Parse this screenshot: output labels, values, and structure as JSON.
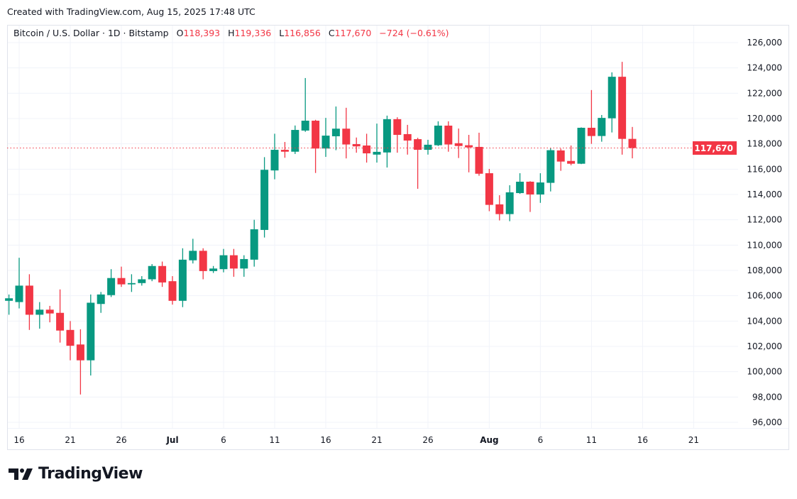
{
  "header": {
    "created": "Created with TradingView.com, Aug 15, 2025 17:48 UTC"
  },
  "legend": {
    "symbol": "Bitcoin / U.S. Dollar · 1D · Bitstamp",
    "o_label": "O",
    "o": "118,393",
    "h_label": "H",
    "h": "119,336",
    "l_label": "L",
    "l": "116,856",
    "c_label": "C",
    "c": "117,670",
    "change": "−724 (−0.61%)"
  },
  "last_price_label": "117,670",
  "brand": {
    "name": "TradingView"
  },
  "colors": {
    "up": "#089981",
    "down": "#F23645",
    "grid": "#F0F3FA"
  },
  "chart_data": {
    "type": "candlestick",
    "title": "Bitcoin / U.S. Dollar · 1D · Bitstamp",
    "ylim": [
      95500,
      126500
    ],
    "yticks": [
      96000,
      98000,
      100000,
      102000,
      104000,
      106000,
      108000,
      110000,
      112000,
      114000,
      116000,
      118000,
      120000,
      122000,
      124000,
      126000
    ],
    "ytick_labels": [
      "96,000",
      "98,000",
      "100,000",
      "102,000",
      "104,000",
      "106,000",
      "108,000",
      "110,000",
      "112,000",
      "114,000",
      "116,000",
      "118,000",
      "120,000",
      "122,000",
      "124,000",
      "126,000"
    ],
    "xticks": [
      {
        "date": "2025-06-16",
        "label": "16"
      },
      {
        "date": "2025-06-21",
        "label": "21"
      },
      {
        "date": "2025-06-26",
        "label": "26"
      },
      {
        "date": "2025-07-01",
        "label": "Jul"
      },
      {
        "date": "2025-07-06",
        "label": "6"
      },
      {
        "date": "2025-07-11",
        "label": "11"
      },
      {
        "date": "2025-07-16",
        "label": "16"
      },
      {
        "date": "2025-07-21",
        "label": "21"
      },
      {
        "date": "2025-07-26",
        "label": "26"
      },
      {
        "date": "2025-08-01",
        "label": "Aug"
      },
      {
        "date": "2025-08-06",
        "label": "6"
      },
      {
        "date": "2025-08-11",
        "label": "11"
      },
      {
        "date": "2025-08-16",
        "label": "16"
      },
      {
        "date": "2025-08-21",
        "label": "21"
      }
    ],
    "grid": true,
    "last_price": 117670,
    "candles": [
      {
        "date": "2025-06-15",
        "o": 105600,
        "h": 106100,
        "l": 104500,
        "c": 105800
      },
      {
        "date": "2025-06-16",
        "o": 105500,
        "h": 109000,
        "l": 105000,
        "c": 106800
      },
      {
        "date": "2025-06-17",
        "o": 106800,
        "h": 107700,
        "l": 103300,
        "c": 104500
      },
      {
        "date": "2025-06-18",
        "o": 104500,
        "h": 105500,
        "l": 103400,
        "c": 104900
      },
      {
        "date": "2025-06-19",
        "o": 104900,
        "h": 105200,
        "l": 103900,
        "c": 104600
      },
      {
        "date": "2025-06-20",
        "o": 104650,
        "h": 106500,
        "l": 102300,
        "c": 103250
      },
      {
        "date": "2025-06-21",
        "o": 103300,
        "h": 104000,
        "l": 100900,
        "c": 102050
      },
      {
        "date": "2025-06-22",
        "o": 102150,
        "h": 103350,
        "l": 98200,
        "c": 100900
      },
      {
        "date": "2025-06-23",
        "o": 100900,
        "h": 106100,
        "l": 99700,
        "c": 105450
      },
      {
        "date": "2025-06-24",
        "o": 105350,
        "h": 106300,
        "l": 104650,
        "c": 106100
      },
      {
        "date": "2025-06-25",
        "o": 106050,
        "h": 108100,
        "l": 105900,
        "c": 107400
      },
      {
        "date": "2025-06-26",
        "o": 107400,
        "h": 108300,
        "l": 106700,
        "c": 106900
      },
      {
        "date": "2025-06-27",
        "o": 106900,
        "h": 107700,
        "l": 106300,
        "c": 107000
      },
      {
        "date": "2025-06-28",
        "o": 107000,
        "h": 107550,
        "l": 106800,
        "c": 107300
      },
      {
        "date": "2025-06-29",
        "o": 107300,
        "h": 108500,
        "l": 107150,
        "c": 108350
      },
      {
        "date": "2025-06-30",
        "o": 108350,
        "h": 108700,
        "l": 106700,
        "c": 107050
      },
      {
        "date": "2025-07-01",
        "o": 107150,
        "h": 107550,
        "l": 105300,
        "c": 105600
      },
      {
        "date": "2025-07-02",
        "o": 105600,
        "h": 109750,
        "l": 105100,
        "c": 108850
      },
      {
        "date": "2025-07-03",
        "o": 108800,
        "h": 110500,
        "l": 108550,
        "c": 109550
      },
      {
        "date": "2025-07-04",
        "o": 109550,
        "h": 109750,
        "l": 107300,
        "c": 107950
      },
      {
        "date": "2025-07-05",
        "o": 107950,
        "h": 108350,
        "l": 107800,
        "c": 108150
      },
      {
        "date": "2025-07-06",
        "o": 108100,
        "h": 109700,
        "l": 107850,
        "c": 109200
      },
      {
        "date": "2025-07-07",
        "o": 109200,
        "h": 109700,
        "l": 107500,
        "c": 108150
      },
      {
        "date": "2025-07-08",
        "o": 108150,
        "h": 109200,
        "l": 107500,
        "c": 108900
      },
      {
        "date": "2025-07-09",
        "o": 108850,
        "h": 112000,
        "l": 108300,
        "c": 111250
      },
      {
        "date": "2025-07-10",
        "o": 111200,
        "h": 116950,
        "l": 110600,
        "c": 115950
      },
      {
        "date": "2025-07-11",
        "o": 115900,
        "h": 118800,
        "l": 115200,
        "c": 117530
      },
      {
        "date": "2025-07-12",
        "o": 117530,
        "h": 118150,
        "l": 116900,
        "c": 117380
      },
      {
        "date": "2025-07-13",
        "o": 117380,
        "h": 119450,
        "l": 117200,
        "c": 119100
      },
      {
        "date": "2025-07-14",
        "o": 119050,
        "h": 123200,
        "l": 118950,
        "c": 119830
      },
      {
        "date": "2025-07-15",
        "o": 119830,
        "h": 119900,
        "l": 115700,
        "c": 117630
      },
      {
        "date": "2025-07-16",
        "o": 117630,
        "h": 120050,
        "l": 116970,
        "c": 118650
      },
      {
        "date": "2025-07-17",
        "o": 118600,
        "h": 120950,
        "l": 117500,
        "c": 119200
      },
      {
        "date": "2025-07-18",
        "o": 119200,
        "h": 120850,
        "l": 116850,
        "c": 117950
      },
      {
        "date": "2025-07-19",
        "o": 117980,
        "h": 118500,
        "l": 117300,
        "c": 117800
      },
      {
        "date": "2025-07-20",
        "o": 117870,
        "h": 118800,
        "l": 116520,
        "c": 117250
      },
      {
        "date": "2025-07-21",
        "o": 117150,
        "h": 119600,
        "l": 116520,
        "c": 117370
      },
      {
        "date": "2025-07-22",
        "o": 117320,
        "h": 120230,
        "l": 116130,
        "c": 119950
      },
      {
        "date": "2025-07-23",
        "o": 119950,
        "h": 120100,
        "l": 117300,
        "c": 118710
      },
      {
        "date": "2025-07-24",
        "o": 118770,
        "h": 119500,
        "l": 117150,
        "c": 118260
      },
      {
        "date": "2025-07-25",
        "o": 118370,
        "h": 118480,
        "l": 114450,
        "c": 117530
      },
      {
        "date": "2025-07-26",
        "o": 117530,
        "h": 118320,
        "l": 117150,
        "c": 117930
      },
      {
        "date": "2025-07-27",
        "o": 117890,
        "h": 119780,
        "l": 117830,
        "c": 119440
      },
      {
        "date": "2025-07-28",
        "o": 119440,
        "h": 119780,
        "l": 117380,
        "c": 117950
      },
      {
        "date": "2025-07-29",
        "o": 118050,
        "h": 119210,
        "l": 116880,
        "c": 117830
      },
      {
        "date": "2025-07-30",
        "o": 117890,
        "h": 118710,
        "l": 115750,
        "c": 117720
      },
      {
        "date": "2025-07-31",
        "o": 117760,
        "h": 118880,
        "l": 115480,
        "c": 115640
      },
      {
        "date": "2025-08-01",
        "o": 115680,
        "h": 116020,
        "l": 112680,
        "c": 113180
      },
      {
        "date": "2025-08-02",
        "o": 113220,
        "h": 113940,
        "l": 111950,
        "c": 112450
      },
      {
        "date": "2025-08-03",
        "o": 112450,
        "h": 114730,
        "l": 111890,
        "c": 114170
      },
      {
        "date": "2025-08-04",
        "o": 114110,
        "h": 115680,
        "l": 114050,
        "c": 115010
      },
      {
        "date": "2025-08-05",
        "o": 115010,
        "h": 115050,
        "l": 112620,
        "c": 114000
      },
      {
        "date": "2025-08-06",
        "o": 114000,
        "h": 115680,
        "l": 113340,
        "c": 114950
      },
      {
        "date": "2025-08-07",
        "o": 114920,
        "h": 117670,
        "l": 114240,
        "c": 117500
      },
      {
        "date": "2025-08-08",
        "o": 117480,
        "h": 117630,
        "l": 115870,
        "c": 116600
      },
      {
        "date": "2025-08-09",
        "o": 116650,
        "h": 117870,
        "l": 116310,
        "c": 116430
      },
      {
        "date": "2025-08-10",
        "o": 116430,
        "h": 119300,
        "l": 116400,
        "c": 119270
      },
      {
        "date": "2025-08-11",
        "o": 119270,
        "h": 122250,
        "l": 118000,
        "c": 118620
      },
      {
        "date": "2025-08-12",
        "o": 118620,
        "h": 120280,
        "l": 118170,
        "c": 120050
      },
      {
        "date": "2025-08-13",
        "o": 120020,
        "h": 123650,
        "l": 118900,
        "c": 123300
      },
      {
        "date": "2025-08-14",
        "o": 123300,
        "h": 124480,
        "l": 117150,
        "c": 118393
      },
      {
        "date": "2025-08-15",
        "o": 118393,
        "h": 119336,
        "l": 116856,
        "c": 117670
      }
    ]
  }
}
